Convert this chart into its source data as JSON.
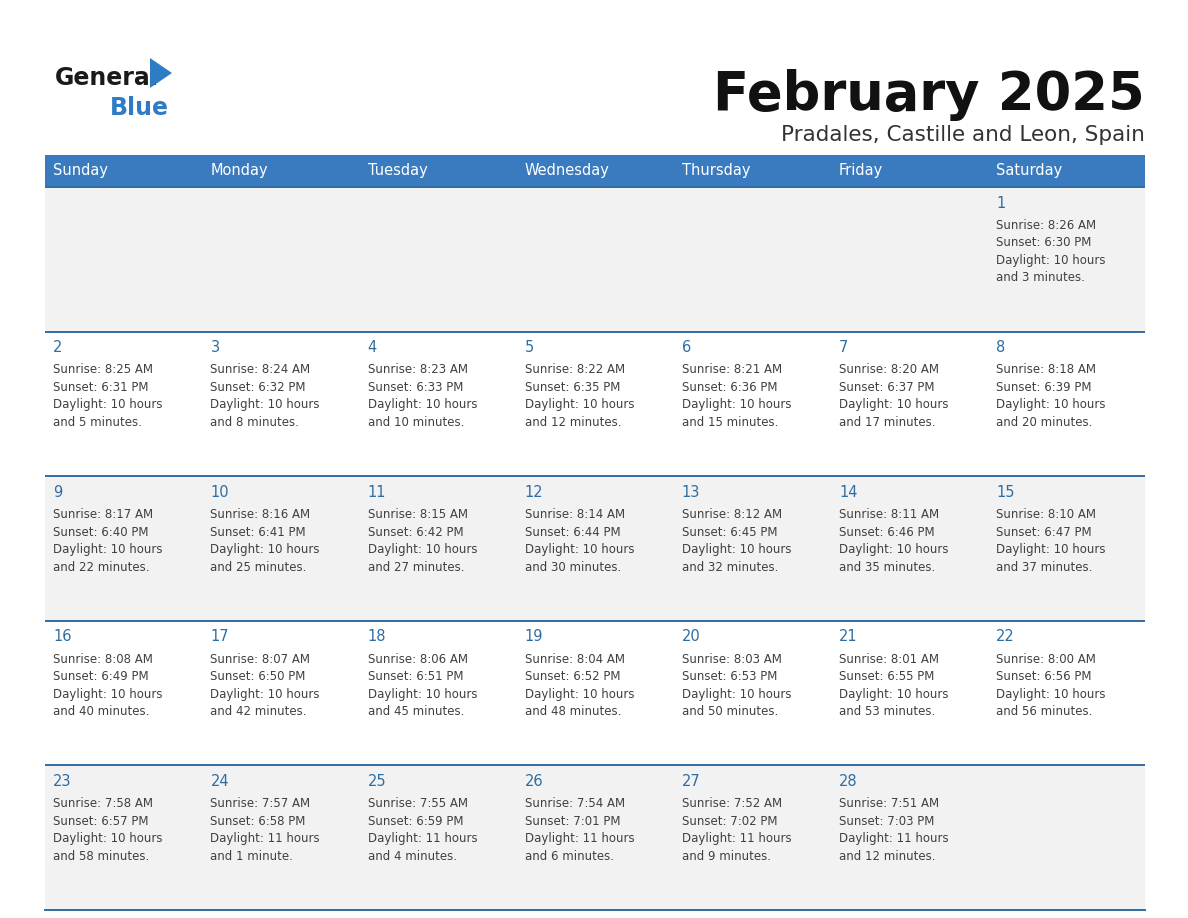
{
  "title": "February 2025",
  "subtitle": "Pradales, Castille and Leon, Spain",
  "header_bg": "#3a7bbf",
  "header_text_color": "#ffffff",
  "day_names": [
    "Sunday",
    "Monday",
    "Tuesday",
    "Wednesday",
    "Thursday",
    "Friday",
    "Saturday"
  ],
  "row_bg_odd": "#f2f2f2",
  "row_bg_even": "#ffffff",
  "separator_color": "#2e6da4",
  "day_number_color": "#2e6da4",
  "cell_text_color": "#404040",
  "calendar_data": [
    [
      null,
      null,
      null,
      null,
      null,
      null,
      {
        "day": "1",
        "sunrise": "8:26 AM",
        "sunset": "6:30 PM",
        "daylight": "10 hours\nand 3 minutes."
      }
    ],
    [
      {
        "day": "2",
        "sunrise": "8:25 AM",
        "sunset": "6:31 PM",
        "daylight": "10 hours\nand 5 minutes."
      },
      {
        "day": "3",
        "sunrise": "8:24 AM",
        "sunset": "6:32 PM",
        "daylight": "10 hours\nand 8 minutes."
      },
      {
        "day": "4",
        "sunrise": "8:23 AM",
        "sunset": "6:33 PM",
        "daylight": "10 hours\nand 10 minutes."
      },
      {
        "day": "5",
        "sunrise": "8:22 AM",
        "sunset": "6:35 PM",
        "daylight": "10 hours\nand 12 minutes."
      },
      {
        "day": "6",
        "sunrise": "8:21 AM",
        "sunset": "6:36 PM",
        "daylight": "10 hours\nand 15 minutes."
      },
      {
        "day": "7",
        "sunrise": "8:20 AM",
        "sunset": "6:37 PM",
        "daylight": "10 hours\nand 17 minutes."
      },
      {
        "day": "8",
        "sunrise": "8:18 AM",
        "sunset": "6:39 PM",
        "daylight": "10 hours\nand 20 minutes."
      }
    ],
    [
      {
        "day": "9",
        "sunrise": "8:17 AM",
        "sunset": "6:40 PM",
        "daylight": "10 hours\nand 22 minutes."
      },
      {
        "day": "10",
        "sunrise": "8:16 AM",
        "sunset": "6:41 PM",
        "daylight": "10 hours\nand 25 minutes."
      },
      {
        "day": "11",
        "sunrise": "8:15 AM",
        "sunset": "6:42 PM",
        "daylight": "10 hours\nand 27 minutes."
      },
      {
        "day": "12",
        "sunrise": "8:14 AM",
        "sunset": "6:44 PM",
        "daylight": "10 hours\nand 30 minutes."
      },
      {
        "day": "13",
        "sunrise": "8:12 AM",
        "sunset": "6:45 PM",
        "daylight": "10 hours\nand 32 minutes."
      },
      {
        "day": "14",
        "sunrise": "8:11 AM",
        "sunset": "6:46 PM",
        "daylight": "10 hours\nand 35 minutes."
      },
      {
        "day": "15",
        "sunrise": "8:10 AM",
        "sunset": "6:47 PM",
        "daylight": "10 hours\nand 37 minutes."
      }
    ],
    [
      {
        "day": "16",
        "sunrise": "8:08 AM",
        "sunset": "6:49 PM",
        "daylight": "10 hours\nand 40 minutes."
      },
      {
        "day": "17",
        "sunrise": "8:07 AM",
        "sunset": "6:50 PM",
        "daylight": "10 hours\nand 42 minutes."
      },
      {
        "day": "18",
        "sunrise": "8:06 AM",
        "sunset": "6:51 PM",
        "daylight": "10 hours\nand 45 minutes."
      },
      {
        "day": "19",
        "sunrise": "8:04 AM",
        "sunset": "6:52 PM",
        "daylight": "10 hours\nand 48 minutes."
      },
      {
        "day": "20",
        "sunrise": "8:03 AM",
        "sunset": "6:53 PM",
        "daylight": "10 hours\nand 50 minutes."
      },
      {
        "day": "21",
        "sunrise": "8:01 AM",
        "sunset": "6:55 PM",
        "daylight": "10 hours\nand 53 minutes."
      },
      {
        "day": "22",
        "sunrise": "8:00 AM",
        "sunset": "6:56 PM",
        "daylight": "10 hours\nand 56 minutes."
      }
    ],
    [
      {
        "day": "23",
        "sunrise": "7:58 AM",
        "sunset": "6:57 PM",
        "daylight": "10 hours\nand 58 minutes."
      },
      {
        "day": "24",
        "sunrise": "7:57 AM",
        "sunset": "6:58 PM",
        "daylight": "11 hours\nand 1 minute."
      },
      {
        "day": "25",
        "sunrise": "7:55 AM",
        "sunset": "6:59 PM",
        "daylight": "11 hours\nand 4 minutes."
      },
      {
        "day": "26",
        "sunrise": "7:54 AM",
        "sunset": "7:01 PM",
        "daylight": "11 hours\nand 6 minutes."
      },
      {
        "day": "27",
        "sunrise": "7:52 AM",
        "sunset": "7:02 PM",
        "daylight": "11 hours\nand 9 minutes."
      },
      {
        "day": "28",
        "sunrise": "7:51 AM",
        "sunset": "7:03 PM",
        "daylight": "11 hours\nand 12 minutes."
      },
      null
    ]
  ]
}
